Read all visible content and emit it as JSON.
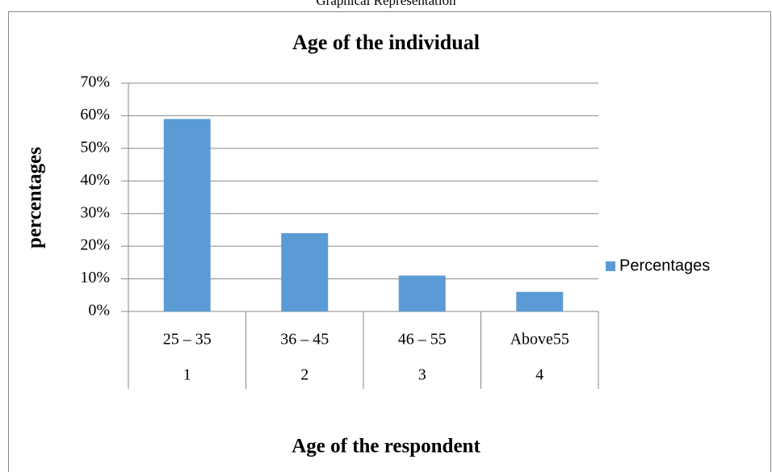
{
  "caption": "Graphical Representation",
  "chart_data": {
    "type": "bar",
    "title": "Age of the individual",
    "x_label": "Age of the respondent",
    "y_label": "percentages",
    "categories": [
      "25 – 35",
      "36 – 45",
      "46 – 55",
      "Above55"
    ],
    "category_numbers": [
      "1",
      "2",
      "3",
      "4"
    ],
    "series": [
      {
        "name": "Percentages",
        "color": "#5b9bd5",
        "values": [
          59,
          24,
          11,
          6
        ]
      }
    ],
    "ylim": [
      0,
      70
    ],
    "yticks": [
      {
        "value": 0,
        "label": "0%"
      },
      {
        "value": 10,
        "label": "10%"
      },
      {
        "value": 20,
        "label": "20%"
      },
      {
        "value": 30,
        "label": "30%"
      },
      {
        "value": 40,
        "label": "40%"
      },
      {
        "value": 50,
        "label": "50%"
      },
      {
        "value": 60,
        "label": "60%"
      },
      {
        "value": 70,
        "label": "70%"
      }
    ],
    "grid": true,
    "legend": "right"
  }
}
